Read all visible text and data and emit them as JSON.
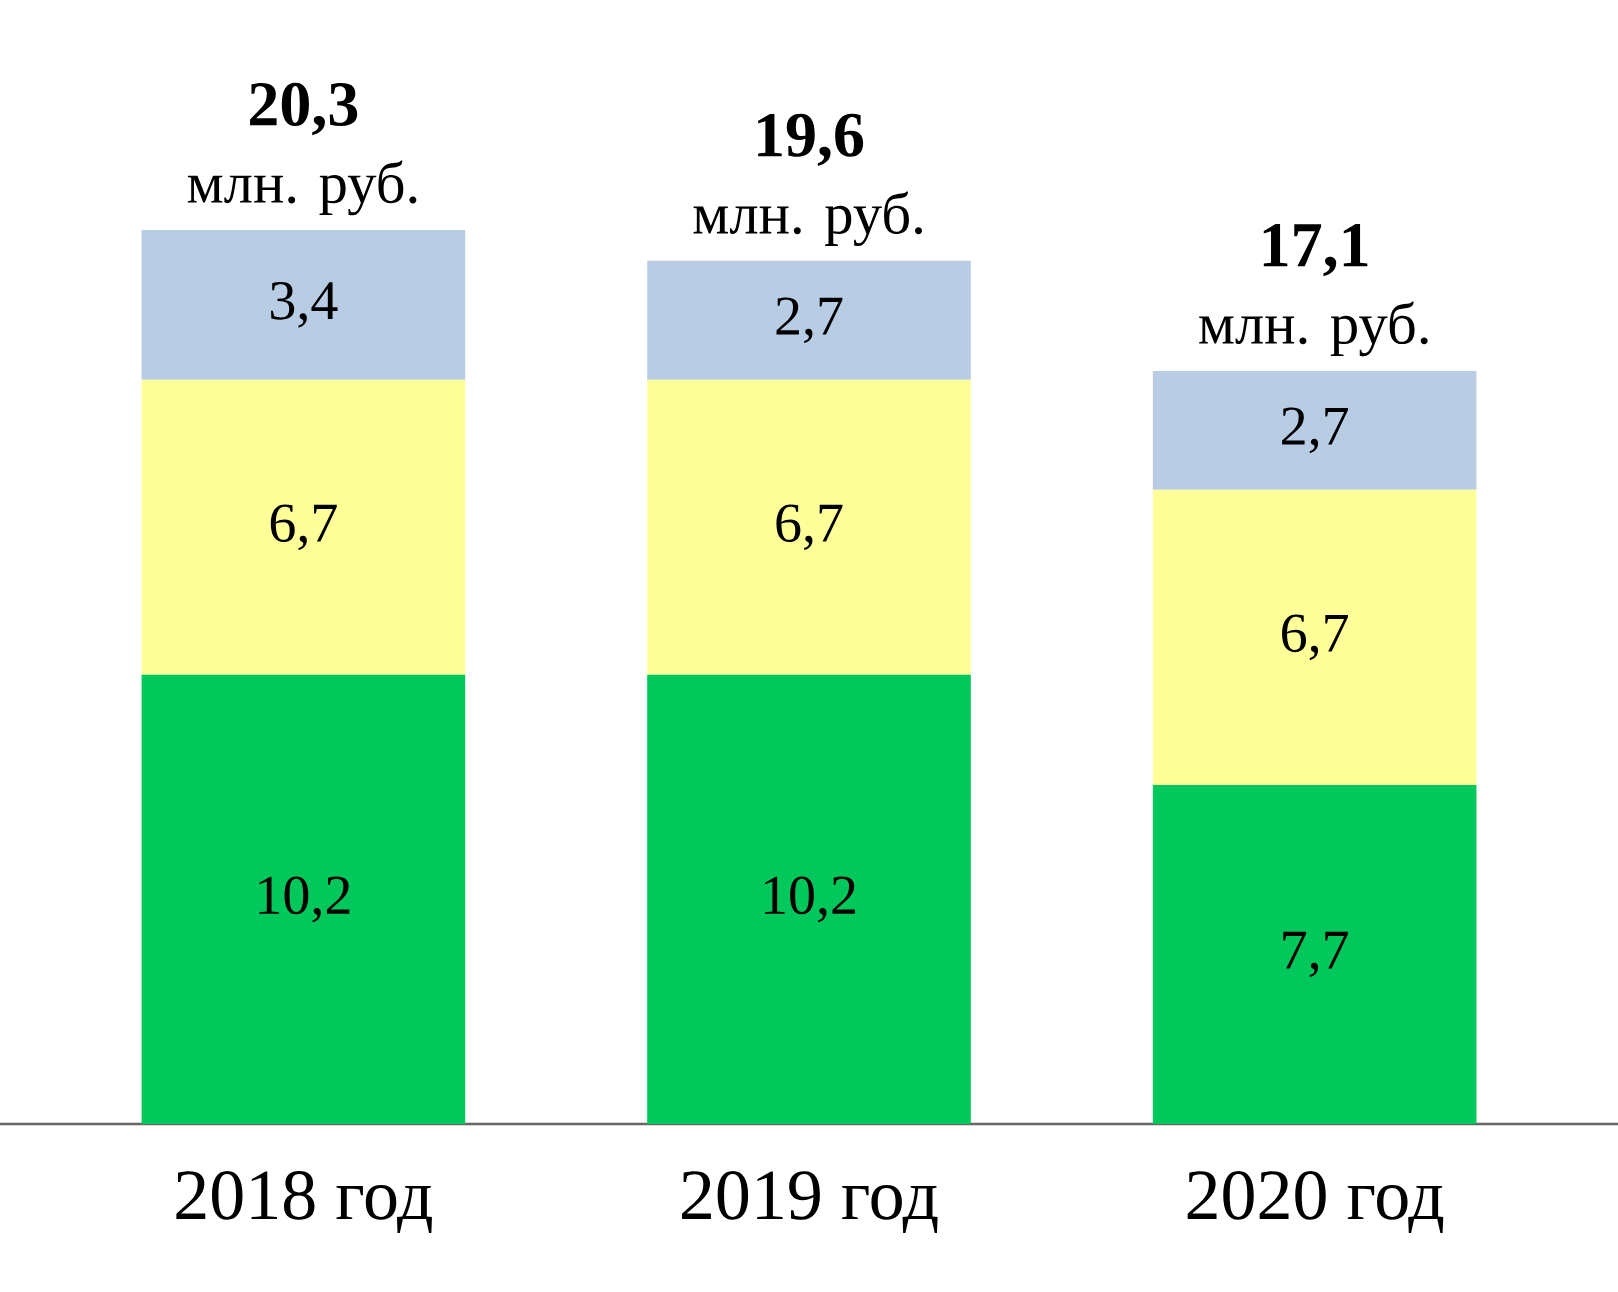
{
  "chart_data": {
    "type": "bar",
    "stacked": true,
    "categories": [
      "2018 год",
      "2019 год",
      "2020 год"
    ],
    "series": [
      {
        "color": "#00c85a",
        "values": [
          10.2,
          10.2,
          7.7
        ],
        "value_labels": [
          "10,2",
          "10,2",
          "7,7"
        ]
      },
      {
        "color": "#ffff99",
        "values": [
          6.7,
          6.7,
          6.7
        ],
        "value_labels": [
          "6,7",
          "6,7",
          "6,7"
        ]
      },
      {
        "color": "#b8cce4",
        "values": [
          3.4,
          2.7,
          2.7
        ],
        "value_labels": [
          "3,4",
          "2,7",
          "2,7"
        ]
      }
    ],
    "totals": [
      "20,3",
      "19,6",
      "17,1"
    ],
    "annotations": [
      {
        "text": "млн. руб.",
        "x": "2018 год",
        "y": 20.3
      },
      {
        "text": "млн. руб.",
        "x": "2019 год",
        "y": 19.6
      },
      {
        "text": "млн. руб.",
        "x": "2020 год",
        "y": 17.1
      }
    ]
  }
}
